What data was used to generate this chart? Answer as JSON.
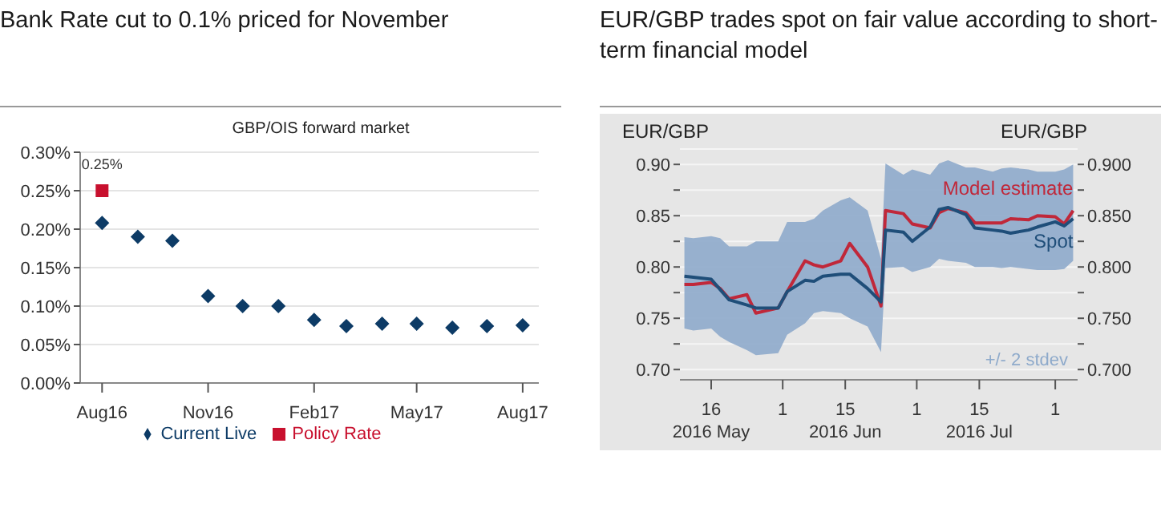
{
  "chart_data": [
    {
      "type": "scatter",
      "title": "Bank Rate cut to 0.1% priced for November",
      "annotations": [
        "GBP/OIS forward market"
      ],
      "x": [
        "2016-08",
        "2016-09",
        "2016-10",
        "2016-11",
        "2016-12",
        "2017-01",
        "2017-02",
        "2017-03",
        "2017-04",
        "2017-05",
        "2017-06",
        "2017-07",
        "2017-08"
      ],
      "series": [
        {
          "name": "Current Live",
          "color": "#0d3b66",
          "marker": "diamond",
          "values": [
            0.208,
            0.19,
            0.185,
            0.113,
            0.1,
            0.1,
            0.082,
            0.074,
            0.077,
            0.077,
            0.072,
            0.074,
            0.075
          ]
        },
        {
          "name": "Policy Rate",
          "color": "#c8102e",
          "marker": "square",
          "x": [
            "2016-08"
          ],
          "values": [
            0.25
          ],
          "value_labels": [
            "0.25%"
          ]
        }
      ],
      "xlim": [
        "2016-07-13",
        "2017-08-15"
      ],
      "xticks": [
        {
          "value": "2016-08",
          "label": "Aug16"
        },
        {
          "value": "2016-11",
          "label": "Nov16"
        },
        {
          "value": "2017-02",
          "label": "Feb17"
        },
        {
          "value": "2017-05",
          "label": "May17"
        },
        {
          "value": "2017-08",
          "label": "Aug17"
        }
      ],
      "ylim": [
        0,
        0.3
      ],
      "yticks": [
        {
          "value": 0,
          "label": "0.00%"
        },
        {
          "value": 0.05,
          "label": "0.05%"
        },
        {
          "value": 0.1,
          "label": "0.10%"
        },
        {
          "value": 0.15,
          "label": "0.15%"
        },
        {
          "value": 0.2,
          "label": "0.20%"
        },
        {
          "value": 0.25,
          "label": "0.25%"
        },
        {
          "value": 0.3,
          "label": "0.30%"
        }
      ],
      "grid": "y",
      "legend": "bottom"
    },
    {
      "type": "line",
      "title": "EUR/GBP trades spot on fair value according to short-term financial model",
      "ylabel": "EUR/GBP",
      "y2label": "EUR/GBP",
      "x": [
        "2016-05-10",
        "2016-05-12",
        "2016-05-16",
        "2016-05-18",
        "2016-05-20",
        "2016-05-24",
        "2016-05-26",
        "2016-05-31",
        "2016-06-02",
        "2016-06-06",
        "2016-06-08",
        "2016-06-10",
        "2016-06-14",
        "2016-06-16",
        "2016-06-20",
        "2016-06-23",
        "2016-06-24",
        "2016-06-28",
        "2016-06-30",
        "2016-07-04",
        "2016-07-06",
        "2016-07-08",
        "2016-07-12",
        "2016-07-14",
        "2016-07-18",
        "2016-07-20",
        "2016-07-22",
        "2016-07-26",
        "2016-07-28",
        "2016-08-01",
        "2016-08-03",
        "2016-08-05"
      ],
      "annotations": [
        "+/- 2 stdev"
      ],
      "series": [
        {
          "name": "Model estimate",
          "color": "#c0283a",
          "lower": [
            0.74,
            0.738,
            0.74,
            0.732,
            0.727,
            0.719,
            0.714,
            0.716,
            0.734,
            0.745,
            0.755,
            0.757,
            0.755,
            0.75,
            0.742,
            0.717,
            0.799,
            0.8,
            0.795,
            0.8,
            0.808,
            0.806,
            0.804,
            0.8,
            0.8,
            0.799,
            0.8,
            0.798,
            0.797,
            0.797,
            0.798,
            0.806
          ],
          "upper": [
            0.829,
            0.828,
            0.83,
            0.828,
            0.82,
            0.82,
            0.825,
            0.825,
            0.844,
            0.844,
            0.847,
            0.855,
            0.865,
            0.868,
            0.855,
            0.808,
            0.901,
            0.89,
            0.895,
            0.89,
            0.901,
            0.904,
            0.897,
            0.897,
            0.893,
            0.896,
            0.897,
            0.895,
            0.893,
            0.893,
            0.895,
            0.9
          ],
          "values": [
            0.783,
            0.783,
            0.785,
            0.779,
            0.769,
            0.773,
            0.755,
            0.76,
            0.776,
            0.806,
            0.802,
            0.8,
            0.806,
            0.823,
            0.8,
            0.762,
            0.855,
            0.852,
            0.842,
            0.838,
            0.853,
            0.857,
            0.853,
            0.843,
            0.843,
            0.843,
            0.847,
            0.846,
            0.85,
            0.849,
            0.842,
            0.855
          ]
        },
        {
          "name": "Spot",
          "color": "#1f4e79",
          "values": [
            0.791,
            0.79,
            0.788,
            0.778,
            0.768,
            0.763,
            0.76,
            0.76,
            0.776,
            0.787,
            0.786,
            0.791,
            0.793,
            0.793,
            0.779,
            0.766,
            0.836,
            0.834,
            0.825,
            0.839,
            0.856,
            0.858,
            0.851,
            0.838,
            0.836,
            0.835,
            0.833,
            0.836,
            0.839,
            0.844,
            0.84,
            0.847
          ]
        }
      ],
      "xlim": [
        "2016-05-09",
        "2016-08-06"
      ],
      "xticks": [
        {
          "value": "2016-05-16",
          "label": "16\n2016 May"
        },
        {
          "value": "2016-06-01",
          "label": "1"
        },
        {
          "value": "2016-06-15",
          "label": "15\n2016 Jun"
        },
        {
          "value": "2016-07-01",
          "label": "1"
        },
        {
          "value": "2016-07-15",
          "label": "15\n2016 Jul"
        },
        {
          "value": "2016-08-01",
          "label": "1"
        }
      ],
      "ylim": [
        0.69,
        0.915
      ],
      "yticks": [
        {
          "value": 0.7,
          "label": "0.70"
        },
        {
          "value": 0.725,
          "label": null
        },
        {
          "value": 0.75,
          "label": "0.75"
        },
        {
          "value": 0.775,
          "label": null
        },
        {
          "value": 0.8,
          "label": "0.80"
        },
        {
          "value": 0.825,
          "label": null
        },
        {
          "value": 0.85,
          "label": "0.85"
        },
        {
          "value": 0.875,
          "label": null
        },
        {
          "value": 0.9,
          "label": "0.90"
        }
      ],
      "y2lim": [
        0.69,
        0.915
      ],
      "y2ticks": [
        {
          "value": 0.7,
          "label": "0.700"
        },
        {
          "value": 0.725,
          "label": null
        },
        {
          "value": 0.75,
          "label": "0.750"
        },
        {
          "value": 0.775,
          "label": null
        },
        {
          "value": 0.8,
          "label": "0.800"
        },
        {
          "value": 0.825,
          "label": null
        },
        {
          "value": 0.85,
          "label": "0.850"
        },
        {
          "value": 0.875,
          "label": null
        },
        {
          "value": 0.9,
          "label": "0.900"
        }
      ],
      "grid": "y",
      "legend": false
    }
  ]
}
